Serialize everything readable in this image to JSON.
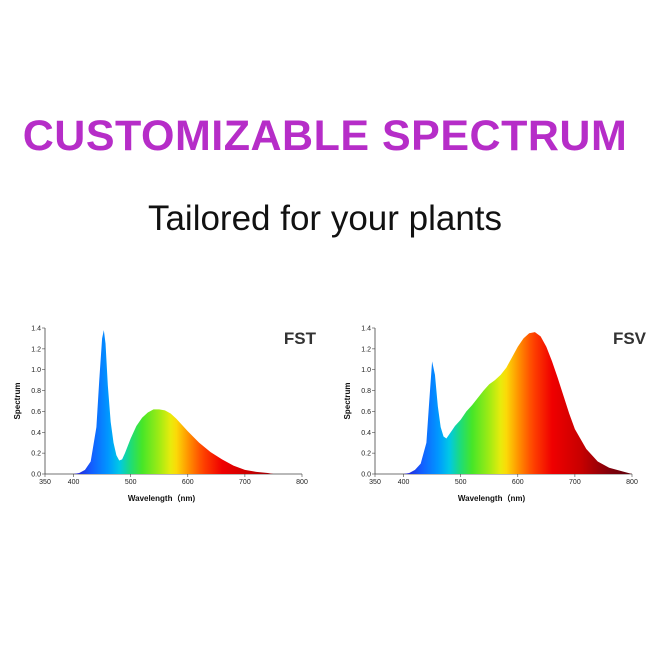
{
  "headline": "CUSTOMIZABLE SPECTRUM",
  "subheadline": "Tailored for your plants",
  "colors": {
    "headline": "#b62dc8",
    "text": "#111111"
  },
  "chart_data": [
    {
      "type": "area",
      "title": "FST",
      "xlabel": "Wavelength（nm)",
      "ylabel": "Spectrum",
      "xlim": [
        350,
        800
      ],
      "ylim": [
        0,
        1.4
      ],
      "xticks": [
        350,
        400,
        500,
        600,
        700,
        800
      ],
      "yticks": [
        0.0,
        0.2,
        0.4,
        0.6,
        0.8,
        1.0,
        1.2,
        1.4
      ],
      "series": [
        {
          "x": [
            400,
            410,
            420,
            430,
            440,
            445,
            450,
            453,
            456,
            460,
            465,
            470,
            475,
            480,
            485,
            490,
            500,
            510,
            520,
            530,
            540,
            550,
            560,
            570,
            580,
            590,
            600,
            620,
            640,
            660,
            680,
            700,
            720,
            740,
            750
          ],
          "values": [
            0.0,
            0.01,
            0.04,
            0.12,
            0.45,
            0.9,
            1.3,
            1.38,
            1.25,
            0.85,
            0.5,
            0.3,
            0.18,
            0.13,
            0.14,
            0.2,
            0.34,
            0.46,
            0.54,
            0.59,
            0.62,
            0.62,
            0.61,
            0.58,
            0.53,
            0.47,
            0.41,
            0.3,
            0.21,
            0.14,
            0.08,
            0.04,
            0.02,
            0.01,
            0.0
          ]
        }
      ]
    },
    {
      "type": "area",
      "title": "FSV",
      "xlabel": "Wavelength（nm)",
      "ylabel": "Spectrum",
      "xlim": [
        350,
        800
      ],
      "ylim": [
        0,
        1.4
      ],
      "xticks": [
        350,
        400,
        500,
        600,
        700,
        800
      ],
      "yticks": [
        0.0,
        0.2,
        0.4,
        0.6,
        0.8,
        1.0,
        1.2,
        1.4
      ],
      "series": [
        {
          "x": [
            400,
            410,
            420,
            430,
            440,
            445,
            450,
            455,
            460,
            465,
            470,
            475,
            480,
            485,
            490,
            500,
            510,
            520,
            530,
            540,
            550,
            560,
            570,
            580,
            590,
            600,
            610,
            620,
            630,
            640,
            650,
            660,
            670,
            680,
            690,
            700,
            720,
            740,
            760,
            780,
            800
          ],
          "values": [
            0.0,
            0.01,
            0.04,
            0.1,
            0.3,
            0.7,
            1.08,
            0.95,
            0.65,
            0.45,
            0.36,
            0.34,
            0.38,
            0.42,
            0.46,
            0.52,
            0.6,
            0.66,
            0.73,
            0.8,
            0.86,
            0.9,
            0.95,
            1.02,
            1.12,
            1.22,
            1.3,
            1.35,
            1.36,
            1.32,
            1.22,
            1.08,
            0.92,
            0.75,
            0.58,
            0.43,
            0.24,
            0.12,
            0.06,
            0.03,
            0.0
          ]
        }
      ]
    }
  ]
}
